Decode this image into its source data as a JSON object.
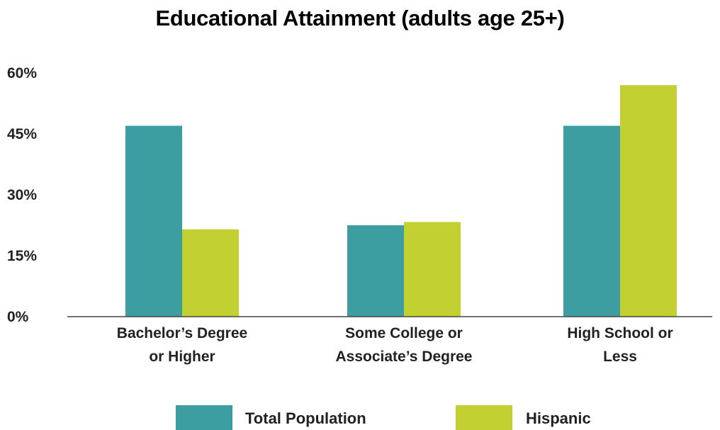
{
  "chart_data": {
    "type": "bar",
    "title": "Educational Attainment (adults age 25+)",
    "xlabel": "",
    "ylabel": "",
    "ylim": [
      0,
      60
    ],
    "yticks": [
      "0%",
      "15%",
      "30%",
      "45%",
      "60%"
    ],
    "ytick_values": [
      0,
      15,
      30,
      45,
      60
    ],
    "categories": [
      [
        "Bachelor’s Degree",
        "or Higher"
      ],
      [
        "Some College or",
        "Associate’s Degree"
      ],
      [
        "High School or",
        "Less"
      ]
    ],
    "series": [
      {
        "name": "Total Population",
        "color": "#3c9ea0",
        "values": [
          47,
          22.5,
          47
        ]
      },
      {
        "name": "Hispanic",
        "color": "#c2d032",
        "values": [
          21.5,
          23.3,
          57
        ]
      }
    ],
    "grid": false,
    "legend_position": "bottom"
  }
}
